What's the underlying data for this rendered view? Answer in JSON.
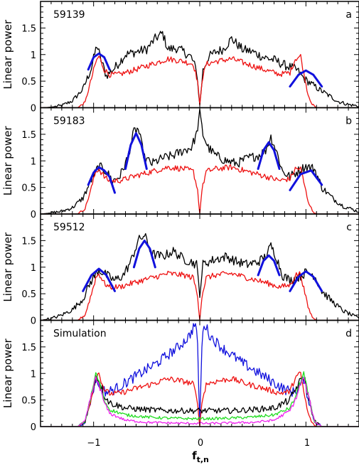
{
  "chart_data": {
    "type": "line",
    "x_axis": {
      "label": "f",
      "label_subscript": "t,n",
      "lim": [
        -1.5,
        1.5
      ],
      "ticks": [
        -1,
        0,
        1
      ],
      "tick_labels": [
        "−1",
        "0",
        "1"
      ]
    },
    "ylabel": "Linear power",
    "ylim": [
      0,
      2
    ],
    "y_ticks": [
      0,
      0.5,
      1,
      1.5
    ],
    "y_tick_labels": [
      "0",
      "0.5",
      "1",
      "1.5"
    ],
    "grid": false,
    "colors": {
      "black": "#000000",
      "red": "#ee1111",
      "blue": "#1111dd",
      "green": "#22dd22",
      "magenta": "#ee22ee"
    },
    "panels": [
      {
        "name": "59139",
        "letter": "a",
        "series": [
          {
            "color": "black",
            "x": [
              -1.5,
              -1.4,
              -1.3,
              -1.2,
              -1.1,
              -1.02,
              -0.97,
              -0.93,
              -0.88,
              -0.8,
              -0.7,
              -0.6,
              -0.5,
              -0.42,
              -0.35,
              -0.3,
              -0.22,
              -0.15,
              -0.08,
              -0.03,
              0.0,
              0.03,
              0.08,
              0.15,
              0.22,
              0.3,
              0.4,
              0.5,
              0.6,
              0.7,
              0.8,
              0.87,
              0.92,
              0.98,
              1.05,
              1.12,
              1.2,
              1.3,
              1.4,
              1.5
            ],
            "y": [
              0.0,
              0.01,
              0.04,
              0.13,
              0.35,
              0.75,
              1.18,
              0.9,
              0.6,
              0.75,
              1.0,
              1.05,
              1.1,
              1.3,
              1.4,
              1.1,
              1.12,
              1.05,
              0.95,
              0.7,
              0.05,
              0.7,
              0.95,
              1.05,
              1.1,
              1.3,
              1.1,
              1.05,
              0.95,
              0.9,
              0.8,
              0.75,
              0.7,
              0.55,
              0.45,
              0.35,
              0.25,
              0.12,
              0.06,
              0.03
            ]
          },
          {
            "color": "red",
            "x": [
              -1.5,
              -1.15,
              -1.08,
              -1.02,
              -0.98,
              -0.95,
              -0.9,
              -0.85,
              -0.75,
              -0.6,
              -0.45,
              -0.3,
              -0.15,
              -0.06,
              -0.02,
              0.0,
              0.02,
              0.06,
              0.15,
              0.3,
              0.45,
              0.6,
              0.75,
              0.85,
              0.9,
              0.95,
              0.98,
              1.02,
              1.06,
              1.1,
              1.5
            ],
            "y": [
              0.0,
              0.0,
              0.1,
              0.55,
              0.85,
              0.97,
              0.72,
              0.62,
              0.63,
              0.72,
              0.82,
              0.92,
              0.87,
              0.82,
              0.5,
              0.03,
              0.5,
              0.82,
              0.87,
              0.92,
              0.82,
              0.72,
              0.63,
              0.66,
              0.92,
              0.97,
              0.65,
              0.25,
              0.06,
              0.0,
              0.0
            ]
          },
          {
            "color": "blue",
            "x": [
              -1.05,
              -1.0,
              -0.95,
              -0.9,
              -0.85
            ],
            "y": [
              0.72,
              0.95,
              1.02,
              0.95,
              0.72
            ]
          },
          {
            "color": "blue",
            "x": [
              0.85,
              0.93,
              1.0,
              1.07,
              1.15
            ],
            "y": [
              0.4,
              0.62,
              0.7,
              0.62,
              0.4
            ]
          }
        ]
      },
      {
        "name": "59183",
        "letter": "b",
        "series": [
          {
            "color": "black",
            "x": [
              -1.5,
              -1.4,
              -1.3,
              -1.2,
              -1.1,
              -1.02,
              -0.95,
              -0.88,
              -0.82,
              -0.75,
              -0.68,
              -0.62,
              -0.58,
              -0.52,
              -0.45,
              -0.35,
              -0.25,
              -0.15,
              -0.08,
              -0.03,
              0.0,
              0.03,
              0.08,
              0.15,
              0.25,
              0.35,
              0.45,
              0.55,
              0.62,
              0.67,
              0.72,
              0.78,
              0.85,
              0.92,
              1.0,
              1.08,
              1.15,
              1.25,
              1.35,
              1.45,
              1.5
            ],
            "y": [
              0.0,
              0.02,
              0.05,
              0.12,
              0.3,
              0.65,
              0.9,
              0.8,
              0.62,
              0.72,
              1.05,
              1.55,
              1.6,
              1.05,
              0.95,
              1.05,
              1.1,
              1.2,
              1.25,
              1.5,
              1.9,
              1.5,
              1.25,
              1.1,
              1.0,
              0.95,
              1.05,
              1.1,
              1.2,
              1.45,
              1.2,
              0.8,
              0.7,
              0.8,
              0.9,
              0.85,
              0.5,
              0.3,
              0.15,
              0.08,
              0.04
            ]
          },
          {
            "color": "red",
            "x": [
              -1.5,
              -1.15,
              -1.08,
              -1.02,
              -0.98,
              -0.95,
              -0.9,
              -0.85,
              -0.75,
              -0.6,
              -0.45,
              -0.3,
              -0.15,
              -0.06,
              -0.02,
              0.0,
              0.02,
              0.06,
              0.15,
              0.3,
              0.45,
              0.6,
              0.75,
              0.85,
              0.9,
              0.95,
              0.98,
              1.02,
              1.06,
              1.1,
              1.5
            ],
            "y": [
              0.0,
              0.0,
              0.1,
              0.5,
              0.8,
              0.85,
              0.7,
              0.62,
              0.63,
              0.72,
              0.8,
              0.88,
              0.85,
              0.8,
              0.45,
              0.0,
              0.45,
              0.8,
              0.85,
              0.88,
              0.8,
              0.72,
              0.63,
              0.66,
              0.85,
              0.85,
              0.6,
              0.25,
              0.06,
              0.0,
              0.0
            ]
          },
          {
            "color": "blue",
            "x": [
              -1.05,
              -1.0,
              -0.95,
              -0.9,
              -0.85,
              -0.8
            ],
            "y": [
              0.55,
              0.78,
              0.88,
              0.82,
              0.7,
              0.4
            ]
          },
          {
            "color": "blue",
            "x": [
              -0.7,
              -0.65,
              -0.6,
              -0.55,
              -0.5
            ],
            "y": [
              0.85,
              1.3,
              1.52,
              1.3,
              0.85
            ]
          },
          {
            "color": "blue",
            "x": [
              0.55,
              0.6,
              0.65,
              0.7,
              0.75
            ],
            "y": [
              0.85,
              1.2,
              1.35,
              1.2,
              0.85
            ]
          },
          {
            "color": "blue",
            "x": [
              0.85,
              0.95,
              1.05,
              1.15
            ],
            "y": [
              0.45,
              0.75,
              0.82,
              0.55
            ]
          }
        ]
      },
      {
        "name": "59512",
        "letter": "c",
        "series": [
          {
            "color": "black",
            "x": [
              -1.5,
              -1.4,
              -1.3,
              -1.2,
              -1.1,
              -1.02,
              -0.95,
              -0.88,
              -0.8,
              -0.72,
              -0.65,
              -0.58,
              -0.52,
              -0.45,
              -0.35,
              -0.25,
              -0.15,
              -0.08,
              -0.03,
              0.0,
              0.03,
              0.08,
              0.15,
              0.25,
              0.35,
              0.45,
              0.55,
              0.62,
              0.67,
              0.72,
              0.78,
              0.85,
              0.92,
              1.0,
              1.08,
              1.15,
              1.25,
              1.35,
              1.45,
              1.5
            ],
            "y": [
              0.0,
              0.03,
              0.1,
              0.2,
              0.4,
              0.75,
              0.95,
              0.85,
              0.75,
              0.85,
              1.1,
              1.5,
              1.6,
              1.25,
              1.2,
              1.3,
              1.15,
              1.1,
              1.05,
              0.5,
              1.05,
              1.1,
              1.15,
              1.2,
              1.1,
              1.05,
              1.1,
              1.2,
              1.4,
              1.2,
              0.85,
              0.75,
              0.8,
              0.9,
              0.85,
              0.55,
              0.35,
              0.18,
              0.08,
              0.04
            ]
          },
          {
            "color": "red",
            "x": [
              -1.5,
              -1.15,
              -1.08,
              -1.02,
              -0.98,
              -0.95,
              -0.9,
              -0.85,
              -0.75,
              -0.6,
              -0.45,
              -0.3,
              -0.15,
              -0.06,
              -0.02,
              0.0,
              0.02,
              0.06,
              0.15,
              0.3,
              0.45,
              0.6,
              0.75,
              0.85,
              0.9,
              0.95,
              0.98,
              1.02,
              1.06,
              1.1,
              1.5
            ],
            "y": [
              0.0,
              0.0,
              0.1,
              0.5,
              0.8,
              0.88,
              0.7,
              0.62,
              0.63,
              0.72,
              0.8,
              0.88,
              0.85,
              0.8,
              0.45,
              0.0,
              0.45,
              0.8,
              0.85,
              0.88,
              0.8,
              0.72,
              0.63,
              0.66,
              0.85,
              0.88,
              0.6,
              0.25,
              0.06,
              0.0,
              0.0
            ]
          },
          {
            "color": "blue",
            "x": [
              -1.1,
              -1.02,
              -0.95,
              -0.88,
              -0.8
            ],
            "y": [
              0.55,
              0.85,
              0.97,
              0.85,
              0.55
            ]
          },
          {
            "color": "blue",
            "x": [
              -0.62,
              -0.57,
              -0.52,
              -0.47,
              -0.42
            ],
            "y": [
              1.0,
              1.35,
              1.5,
              1.35,
              1.0
            ]
          },
          {
            "color": "blue",
            "x": [
              0.55,
              0.6,
              0.65,
              0.7,
              0.75
            ],
            "y": [
              0.85,
              1.12,
              1.22,
              1.12,
              0.85
            ]
          },
          {
            "color": "blue",
            "x": [
              0.85,
              0.93,
              1.0,
              1.07,
              1.15
            ],
            "y": [
              0.55,
              0.82,
              0.92,
              0.82,
              0.55
            ]
          }
        ]
      },
      {
        "name": "Simulation",
        "letter": "d",
        "series": [
          {
            "color": "blue",
            "x": [
              -1.5,
              -1.15,
              -1.08,
              -1.02,
              -0.98,
              -0.95,
              -0.92,
              -0.88,
              -0.8,
              -0.6,
              -0.4,
              -0.2,
              -0.1,
              -0.04,
              -0.02,
              0.0,
              0.02,
              0.04,
              0.1,
              0.2,
              0.4,
              0.6,
              0.8,
              0.88,
              0.92,
              0.95,
              0.98,
              1.02,
              1.08,
              1.15,
              1.5
            ],
            "y": [
              0.0,
              0.0,
              0.1,
              0.55,
              0.9,
              0.8,
              0.7,
              0.65,
              0.7,
              0.95,
              1.2,
              1.5,
              1.7,
              1.95,
              1.5,
              0.1,
              1.5,
              1.95,
              1.7,
              1.5,
              1.2,
              0.95,
              0.7,
              0.65,
              0.7,
              0.8,
              0.9,
              0.55,
              0.1,
              0.0,
              0.0
            ]
          },
          {
            "color": "red",
            "x": [
              -1.5,
              -1.15,
              -1.08,
              -1.02,
              -0.98,
              -0.95,
              -0.9,
              -0.85,
              -0.75,
              -0.6,
              -0.45,
              -0.3,
              -0.15,
              -0.06,
              -0.02,
              0.0,
              0.02,
              0.06,
              0.15,
              0.3,
              0.45,
              0.6,
              0.75,
              0.85,
              0.9,
              0.95,
              0.98,
              1.02,
              1.06,
              1.1,
              1.5
            ],
            "y": [
              0.0,
              0.0,
              0.1,
              0.55,
              0.95,
              1.0,
              0.7,
              0.62,
              0.63,
              0.72,
              0.8,
              0.9,
              0.85,
              0.8,
              0.45,
              0.0,
              0.45,
              0.8,
              0.85,
              0.9,
              0.8,
              0.72,
              0.63,
              0.66,
              0.92,
              1.0,
              0.65,
              0.25,
              0.06,
              0.0,
              0.0
            ]
          },
          {
            "color": "black",
            "x": [
              -1.5,
              -1.15,
              -1.08,
              -1.02,
              -0.98,
              -0.95,
              -0.9,
              -0.85,
              -0.7,
              -0.5,
              -0.3,
              -0.1,
              0.0,
              0.1,
              0.3,
              0.5,
              0.7,
              0.85,
              0.9,
              0.95,
              0.98,
              1.02,
              1.08,
              1.15,
              1.5
            ],
            "y": [
              0.0,
              0.0,
              0.1,
              0.6,
              0.95,
              0.85,
              0.6,
              0.45,
              0.35,
              0.32,
              0.3,
              0.3,
              0.3,
              0.3,
              0.3,
              0.32,
              0.35,
              0.5,
              0.7,
              0.85,
              0.95,
              0.6,
              0.1,
              0.0,
              0.0
            ]
          },
          {
            "color": "green",
            "x": [
              -1.5,
              -1.15,
              -1.08,
              -1.02,
              -0.98,
              -0.95,
              -0.9,
              -0.85,
              -0.7,
              -0.5,
              -0.3,
              -0.1,
              0.0,
              0.1,
              0.3,
              0.5,
              0.7,
              0.85,
              0.9,
              0.95,
              0.98,
              1.02,
              1.08,
              1.15,
              1.5
            ],
            "y": [
              0.0,
              0.0,
              0.1,
              0.6,
              1.0,
              0.85,
              0.5,
              0.32,
              0.22,
              0.18,
              0.16,
              0.15,
              0.15,
              0.15,
              0.16,
              0.18,
              0.22,
              0.35,
              0.55,
              0.85,
              1.0,
              0.6,
              0.1,
              0.0,
              0.0
            ]
          },
          {
            "color": "magenta",
            "x": [
              -1.5,
              -1.15,
              -1.08,
              -1.02,
              -0.98,
              -0.95,
              -0.9,
              -0.85,
              -0.7,
              -0.5,
              -0.3,
              -0.1,
              0.0,
              0.1,
              0.3,
              0.5,
              0.7,
              0.85,
              0.9,
              0.95,
              0.98,
              1.02,
              1.08,
              1.15,
              1.5
            ],
            "y": [
              0.0,
              0.0,
              0.1,
              0.6,
              0.9,
              0.8,
              0.45,
              0.25,
              0.12,
              0.08,
              0.07,
              0.06,
              0.06,
              0.06,
              0.07,
              0.08,
              0.12,
              0.3,
              0.5,
              0.8,
              0.9,
              0.6,
              0.1,
              0.0,
              0.0
            ]
          }
        ]
      }
    ]
  }
}
